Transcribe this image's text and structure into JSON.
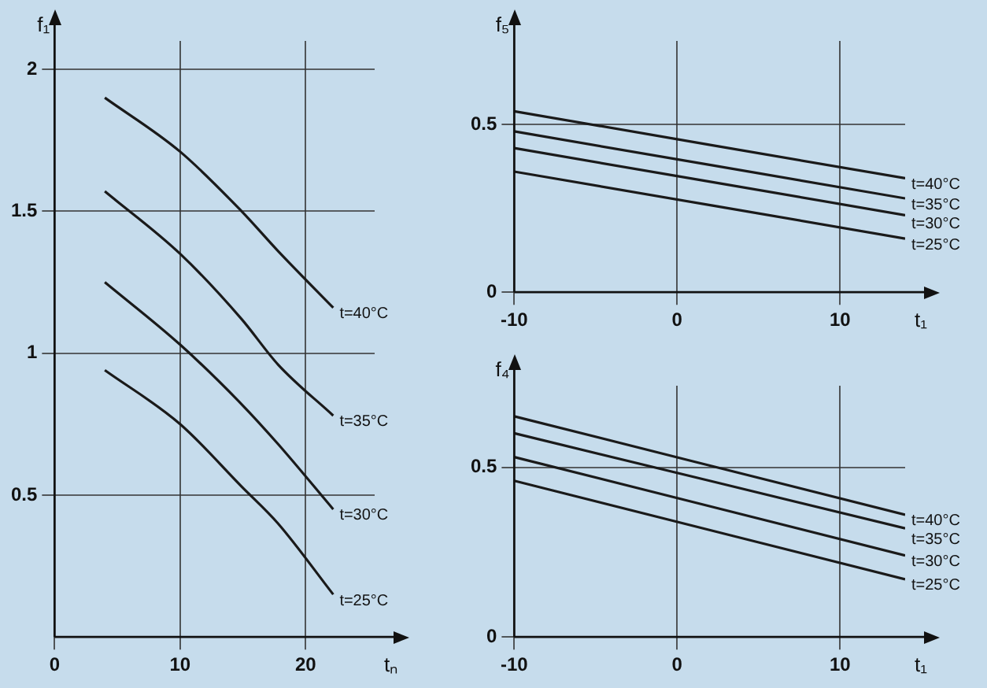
{
  "chart_data": [
    {
      "type": "line",
      "xlabel": "tₙ",
      "ylabel": "f₁",
      "xlim": [
        0,
        25.5
      ],
      "ylim": [
        0,
        2.1
      ],
      "xticks": [
        0,
        10,
        20
      ],
      "yticks": [
        0.5,
        1,
        1.5,
        2
      ],
      "grid": true,
      "legend": false,
      "marker": "none",
      "line_style": "solid",
      "series": [
        {
          "name": "t=40°C",
          "color": "#1a1a1a",
          "x": [
            4,
            10,
            14.9,
            17.8,
            22.2
          ],
          "values": [
            1.9,
            1.71,
            1.5,
            1.36,
            1.16
          ]
        },
        {
          "name": "t=35°C",
          "color": "#1a1a1a",
          "x": [
            4,
            10,
            14.9,
            17.8,
            22.2
          ],
          "values": [
            1.57,
            1.35,
            1.12,
            0.96,
            0.78
          ]
        },
        {
          "name": "t=30°C",
          "color": "#1a1a1a",
          "x": [
            4,
            10,
            14.9,
            17.8,
            22.2
          ],
          "values": [
            1.25,
            1.03,
            0.82,
            0.68,
            0.45
          ]
        },
        {
          "name": "t=25°C",
          "color": "#1a1a1a",
          "x": [
            4,
            10,
            14.9,
            17.8,
            22.2
          ],
          "values": [
            0.94,
            0.75,
            0.53,
            0.4,
            0.15
          ]
        }
      ]
    },
    {
      "type": "line",
      "xlabel": "t₁",
      "ylabel": "f₅",
      "xlim": [
        -10,
        14
      ],
      "ylim": [
        0,
        0.75
      ],
      "xticks": [
        -10,
        0,
        10
      ],
      "yticks": [
        0,
        0.5
      ],
      "grid": true,
      "legend": false,
      "marker": "none",
      "line_style": "solid",
      "series": [
        {
          "name": "t=40°C",
          "color": "#1a1a1a",
          "x": [
            -10,
            14
          ],
          "values": [
            0.54,
            0.34
          ]
        },
        {
          "name": "t=35°C",
          "color": "#1a1a1a",
          "x": [
            -10,
            14
          ],
          "values": [
            0.48,
            0.28
          ]
        },
        {
          "name": "t=30°C",
          "color": "#1a1a1a",
          "x": [
            -10,
            14
          ],
          "values": [
            0.43,
            0.23
          ]
        },
        {
          "name": "t=25°C",
          "color": "#1a1a1a",
          "x": [
            -10,
            14
          ],
          "values": [
            0.36,
            0.16
          ]
        }
      ]
    },
    {
      "type": "line",
      "xlabel": "t₁",
      "ylabel": "f₄",
      "xlim": [
        -10,
        14
      ],
      "ylim": [
        0,
        0.74
      ],
      "xticks": [
        -10,
        0,
        10
      ],
      "yticks": [
        0,
        0.5
      ],
      "grid": true,
      "legend": false,
      "marker": "none",
      "line_style": "solid",
      "series": [
        {
          "name": "t=40°C",
          "color": "#1a1a1a",
          "x": [
            -10,
            14
          ],
          "values": [
            0.65,
            0.36
          ]
        },
        {
          "name": "t=35°C",
          "color": "#1a1a1a",
          "x": [
            -10,
            14
          ],
          "values": [
            0.6,
            0.32
          ]
        },
        {
          "name": "t=30°C",
          "color": "#1a1a1a",
          "x": [
            -10,
            14
          ],
          "values": [
            0.53,
            0.24
          ]
        },
        {
          "name": "t=25°C",
          "color": "#1a1a1a",
          "x": [
            -10,
            14
          ],
          "values": [
            0.46,
            0.17
          ]
        }
      ]
    }
  ]
}
